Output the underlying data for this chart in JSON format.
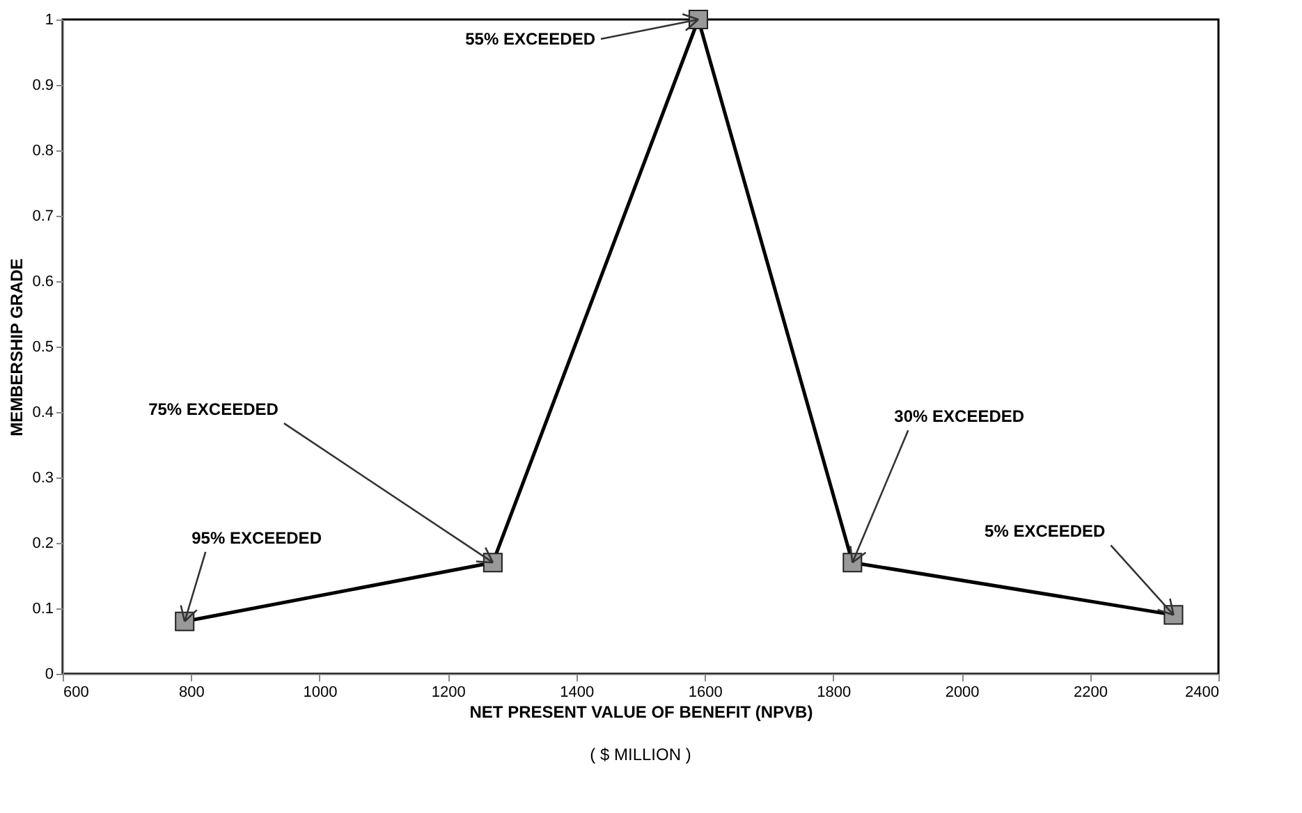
{
  "chart_data": {
    "type": "line",
    "xlabel": "NET PRESENT VALUE OF BENEFIT (NPVB)",
    "ylabel": "MEMBERSHIP GRADE",
    "x": [
      790,
      1270,
      1590,
      1830,
      2330
    ],
    "series": [
      {
        "color": "#000000",
        "values": [
          0.08,
          0.17,
          1.0,
          0.17,
          0.09
        ]
      }
    ],
    "xlim": [
      600,
      2400
    ],
    "xticks": [
      600,
      800,
      1000,
      1200,
      1400,
      1600,
      1800,
      2000,
      2200,
      2400
    ],
    "ylim": [
      0,
      1
    ],
    "yticks": [
      0,
      0.1,
      0.2,
      0.3,
      0.4,
      0.5,
      0.6,
      0.7,
      0.8,
      0.9,
      1
    ],
    "marker": "square",
    "line_style": "solid",
    "grid": false,
    "legend": false,
    "annotations": [
      {
        "text": "95%  EXCEEDED",
        "x": 790,
        "y": 0.08
      },
      {
        "text": "75%  EXCEEDED",
        "x": 1270,
        "y": 0.17
      },
      {
        "text": "55%  EXCEEDED",
        "x": 1590,
        "y": 1.0
      },
      {
        "text": "30%  EXCEEDED",
        "x": 1830,
        "y": 0.17
      },
      {
        "text": "5%  EXCEEDED",
        "x": 2330,
        "y": 0.09
      },
      "( $ MILLION )"
    ]
  }
}
